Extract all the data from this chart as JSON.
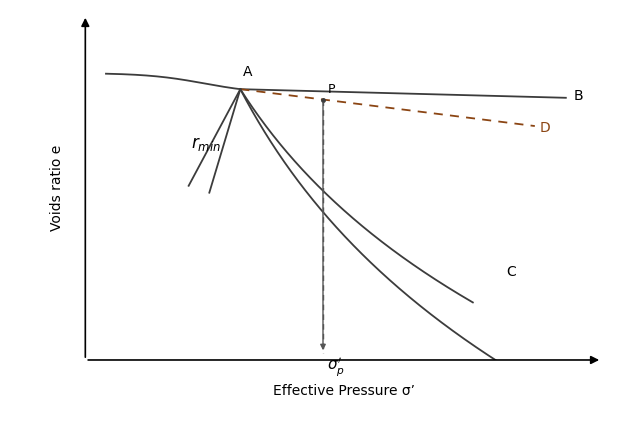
{
  "xlabel": "Effective Pressure σ’",
  "ylabel": "Voids ratio e",
  "background_color": "#ffffff",
  "text_color": "#000000",
  "curve_color": "#3c3c3c",
  "line_D_color": "#8B4513",
  "label_A": "A",
  "label_B": "B",
  "label_C": "C",
  "label_D": "D",
  "label_P": "P",
  "point_A": [
    0.3,
    0.785
  ],
  "point_P": [
    0.46,
    0.755
  ],
  "xlim": [
    0,
    1.0
  ],
  "ylim": [
    0,
    1.0
  ]
}
